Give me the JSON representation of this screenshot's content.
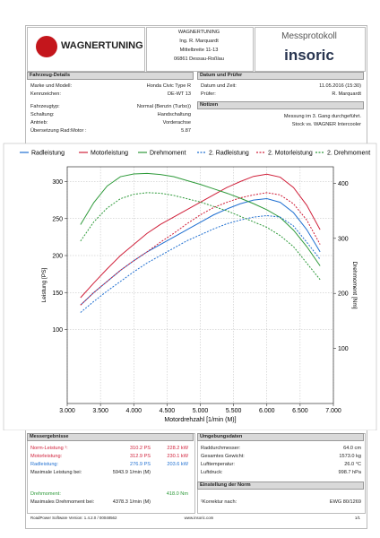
{
  "header": {
    "logo_text": "WAGNERTUNING",
    "address": [
      "WAGNERTUNING",
      "Ing. R. Marquardt",
      "Mittelbreite 11-13",
      "06861 Dessau-Roßlau"
    ],
    "doc_title": "Messprotokoll",
    "brand": "insoric"
  },
  "vehicle": {
    "title": "Fahrzeug-Details",
    "rows": [
      [
        "Marke und Modell:",
        "Honda Civic Type R"
      ],
      [
        "Kennzeichen:",
        "DE-WT 13"
      ],
      [
        "Fahrzeugtyp:",
        "Normal (Benzin (Turbo))"
      ],
      [
        "Schaltung:",
        "Handschaltung"
      ],
      [
        "Antrieb:",
        "Vorderachse"
      ],
      [
        "Übersetzung Rad:Motor :",
        "5.87"
      ]
    ]
  },
  "inspection": {
    "title": "Datum und Prüfer",
    "rows": [
      [
        "Datum und Zeit:",
        "11.05.2016 (15:30)"
      ],
      [
        "Prüfer:",
        "R. Marquardt"
      ]
    ]
  },
  "notes": {
    "title": "Notizen",
    "lines": [
      "Messung im 3. Gang durchgeführt.",
      "Stock vs. WAGNER Intercooler"
    ]
  },
  "chart_data": {
    "type": "line",
    "xlabel": "Motordrehzahl [1/min (M)]",
    "ylabel": "Leistung [PS]",
    "y2label": "Drehmoment [Nm]",
    "grid": true,
    "x": [
      3200,
      3400,
      3600,
      3800,
      4000,
      4200,
      4400,
      4600,
      4800,
      5000,
      5200,
      5400,
      5600,
      5800,
      6000,
      6200,
      6400,
      6600,
      6800
    ],
    "xlim": [
      3000,
      7000
    ],
    "xticks": [
      {
        "value": 3000,
        "label": "3.000"
      },
      {
        "value": 3500,
        "label": "3.500"
      },
      {
        "value": 4000,
        "label": "4.000"
      },
      {
        "value": 4500,
        "label": "4.500"
      },
      {
        "value": 5000,
        "label": "5.000"
      },
      {
        "value": 5500,
        "label": "5.500"
      },
      {
        "value": 6000,
        "label": "6.000"
      },
      {
        "value": 6500,
        "label": "6.500"
      },
      {
        "value": 7000,
        "label": "7.000"
      }
    ],
    "ylim": [
      0,
      320
    ],
    "yticks": [
      100,
      150,
      200,
      250,
      300
    ],
    "y2lim": [
      0,
      430
    ],
    "y2ticks": [
      100,
      200,
      300,
      400
    ],
    "series": [
      {
        "name": "Radleistung",
        "color": "#1f6fd1",
        "style": "solid",
        "values": [
          133,
          150,
          165,
          180,
          193,
          205,
          215,
          225,
          235,
          245,
          255,
          263,
          270,
          275,
          277,
          272,
          258,
          235,
          205
        ]
      },
      {
        "name": "Motorleistung",
        "color": "#d0203a",
        "style": "solid",
        "values": [
          143,
          163,
          182,
          200,
          215,
          230,
          242,
          252,
          262,
          272,
          282,
          292,
          300,
          307,
          310,
          306,
          292,
          268,
          235
        ]
      },
      {
        "name": "Drehmoment",
        "color": "#2e9a3a",
        "style": "solid",
        "axis": "y2",
        "values": [
          325,
          365,
          395,
          412,
          417,
          418,
          416,
          412,
          405,
          398,
          390,
          382,
          373,
          363,
          352,
          338,
          315,
          285,
          250
        ]
      },
      {
        "name": "2. Radleistung",
        "color": "#1f6fd1",
        "style": "dashed",
        "values": [
          123,
          138,
          152,
          165,
          178,
          190,
          200,
          210,
          220,
          228,
          236,
          243,
          248,
          252,
          254,
          252,
          240,
          218,
          195
        ]
      },
      {
        "name": "2. Motorleistung",
        "color": "#d0203a",
        "style": "dashed",
        "values": [
          133,
          150,
          165,
          180,
          193,
          205,
          218,
          230,
          243,
          255,
          265,
          272,
          278,
          282,
          285,
          282,
          270,
          248,
          215
        ]
      },
      {
        "name": "2. Drehmoment",
        "color": "#2e9a3a",
        "style": "dashed",
        "axis": "y2",
        "values": [
          295,
          330,
          355,
          372,
          380,
          383,
          382,
          378,
          372,
          366,
          358,
          350,
          340,
          330,
          320,
          305,
          285,
          255,
          225
        ]
      }
    ]
  },
  "results": {
    "title": "Messergebnisse",
    "rows": [
      {
        "label": "Norm-Leistung ¹:",
        "value": "310.2 PS",
        "value2": "228.2 kW",
        "color": "#d0203a"
      },
      {
        "label": "Motorleistung:",
        "value": "312.9 PS",
        "value2": "230.1 kW",
        "color": "#d0203a"
      },
      {
        "label": "Radleistung:",
        "value": "276.9 PS",
        "value2": "203.6 kW",
        "color": "#1f6fd1"
      },
      {
        "label": "Maximale Leistung bei:",
        "value": "5943.9 1/min (M)",
        "color": "#222222"
      },
      {
        "label": "Drehmoment:",
        "value2": "418.0 Nm",
        "color": "#2e9a3a"
      },
      {
        "label": "Maximales Drehmoment bei:",
        "value": "4378.3 1/min (M)",
        "color": "#222222"
      }
    ]
  },
  "environment": {
    "title": "Umgebungsdaten",
    "rows": [
      [
        "Raddurchmesser:",
        "64.0 cm"
      ],
      [
        "Gesamtes Gewicht:",
        "1573.0 kg"
      ],
      [
        "Lufttemperatur:",
        "26.0 °C"
      ],
      [
        "Luftdruck:",
        "998.7 hPa"
      ]
    ]
  },
  "norm": {
    "title": "Einstellung der Norm",
    "rows": [
      [
        "¹Korrektur nach:",
        "EWG 80/1269"
      ]
    ]
  },
  "footer": {
    "software": "RoadPower Software Version: 1.4.2.0 / 00048562",
    "url": "www.insoric.com",
    "page": "1/1"
  }
}
